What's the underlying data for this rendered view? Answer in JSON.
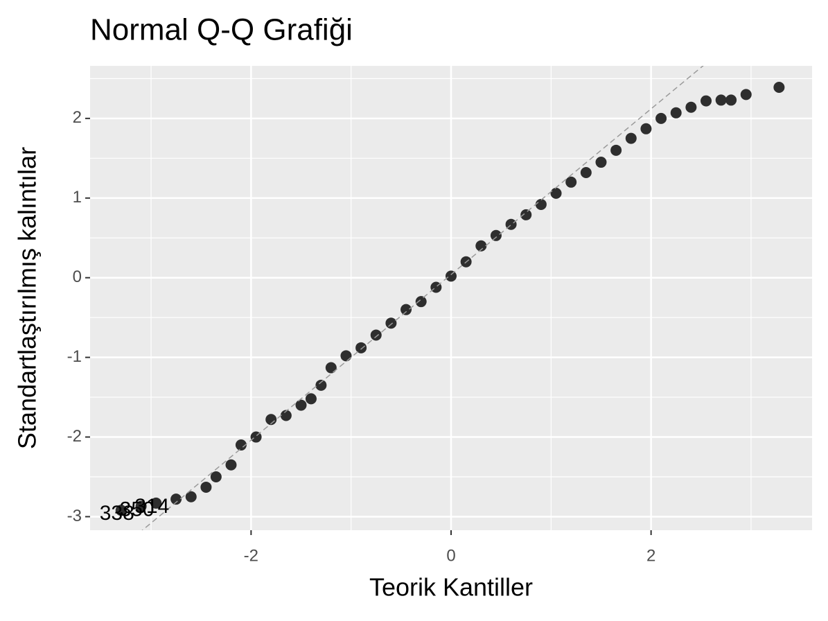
{
  "chart_data": {
    "type": "scatter",
    "title": "Normal Q-Q Grafiği",
    "x_label": "Teorik Kantiller",
    "y_label": "Standartlaştırılmış kalıntılar",
    "x": [
      -3.3,
      -3.1,
      -2.95,
      -2.75,
      -2.6,
      -2.45,
      -2.35,
      -2.2,
      -2.1,
      -1.95,
      -1.8,
      -1.65,
      -1.5,
      -1.4,
      -1.3,
      -1.2,
      -1.05,
      -0.9,
      -0.75,
      -0.6,
      -0.45,
      -0.3,
      -0.15,
      0,
      0.15,
      0.3,
      0.45,
      0.6,
      0.75,
      0.9,
      1.05,
      1.2,
      1.35,
      1.5,
      1.65,
      1.8,
      1.95,
      2.1,
      2.25,
      2.4,
      2.55,
      2.7,
      2.8,
      2.95,
      3.28
    ],
    "y": [
      -2.92,
      -2.87,
      -2.83,
      -2.78,
      -2.75,
      -2.63,
      -2.5,
      -2.35,
      -2.1,
      -2.0,
      -1.78,
      -1.73,
      -1.6,
      -1.52,
      -1.35,
      -1.13,
      -0.98,
      -0.88,
      -0.72,
      -0.57,
      -0.4,
      -0.3,
      -0.12,
      0.02,
      0.2,
      0.4,
      0.53,
      0.67,
      0.79,
      0.92,
      1.06,
      1.2,
      1.32,
      1.45,
      1.6,
      1.75,
      1.87,
      2.0,
      2.07,
      2.14,
      2.22,
      2.23,
      2.23,
      2.3,
      2.39
    ],
    "point_labels": [
      "338",
      "350",
      "314",
      null,
      null,
      null,
      null,
      null,
      null,
      null,
      null,
      null,
      null,
      null,
      null,
      null,
      null,
      null,
      null,
      null,
      null,
      null,
      null,
      null,
      null,
      null,
      null,
      null,
      null,
      null,
      null,
      null,
      null,
      null,
      null,
      null,
      null,
      null,
      null,
      null,
      null,
      null,
      null,
      null,
      null
    ],
    "color": "#2e2e2e",
    "reference_line": {
      "slope": 1.04,
      "intercept": 0.04,
      "color": "#9a9a9a"
    },
    "xlim": [
      -3.61,
      3.61
    ],
    "ylim": [
      -3.17,
      2.66
    ],
    "xticks": [
      -2,
      0,
      2
    ],
    "yticks": [
      -3,
      -2,
      -1,
      0,
      1,
      2
    ],
    "xminor": [
      -3,
      -1,
      1,
      3
    ],
    "yminor": [
      -2.5,
      -1.5,
      -0.5,
      0.5,
      1.5,
      2.5
    ],
    "grid": true
  }
}
